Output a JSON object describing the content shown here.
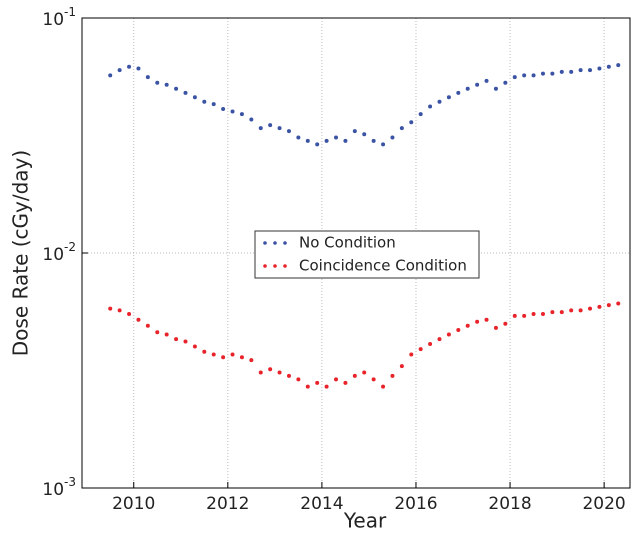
{
  "chart_data": {
    "type": "scatter",
    "x_label": "Year",
    "y_label": "Dose Rate (cGy/day)",
    "log_y": true,
    "grid": true,
    "legend_position": "center",
    "xlim": [
      2008.9,
      2020.55
    ],
    "xticks": [
      2010,
      2012,
      2014,
      2016,
      2018,
      2020
    ],
    "ylim": [
      0.001,
      0.1
    ],
    "yticks": [
      {
        "value": 0.001,
        "label": "10^-3"
      },
      {
        "value": 0.01,
        "label": "10^-2"
      },
      {
        "value": 0.1,
        "label": "10^-1"
      }
    ],
    "x": [
      2009.5,
      2009.7,
      2009.9,
      2010.1,
      2010.3,
      2010.5,
      2010.7,
      2010.9,
      2011.1,
      2011.3,
      2011.5,
      2011.7,
      2011.9,
      2012.1,
      2012.3,
      2012.5,
      2012.7,
      2012.9,
      2013.1,
      2013.3,
      2013.5,
      2013.7,
      2013.9,
      2014.1,
      2014.3,
      2014.5,
      2014.7,
      2014.9,
      2015.1,
      2015.3,
      2015.5,
      2015.7,
      2015.9,
      2016.1,
      2016.3,
      2016.5,
      2016.7,
      2016.9,
      2017.1,
      2017.3,
      2017.5,
      2017.7,
      2017.9,
      2018.1,
      2018.3,
      2018.5,
      2018.7,
      2018.9,
      2019.1,
      2019.3,
      2019.5,
      2019.7,
      2019.9,
      2020.1,
      2020.3
    ],
    "series": [
      {
        "name": "No Condition",
        "color": "#3a53a4",
        "values": [
          0.057,
          0.06,
          0.062,
          0.061,
          0.056,
          0.053,
          0.052,
          0.05,
          0.048,
          0.046,
          0.044,
          0.043,
          0.041,
          0.04,
          0.039,
          0.037,
          0.034,
          0.035,
          0.034,
          0.033,
          0.031,
          0.03,
          0.029,
          0.03,
          0.031,
          0.03,
          0.033,
          0.032,
          0.03,
          0.029,
          0.031,
          0.034,
          0.036,
          0.039,
          0.042,
          0.044,
          0.046,
          0.048,
          0.05,
          0.052,
          0.054,
          0.05,
          0.053,
          0.056,
          0.057,
          0.057,
          0.058,
          0.058,
          0.059,
          0.059,
          0.06,
          0.06,
          0.061,
          0.062,
          0.063
        ]
      },
      {
        "name": "Coincidence Condition",
        "color": "#e8232a",
        "values": [
          0.0058,
          0.0057,
          0.0055,
          0.0052,
          0.0049,
          0.0046,
          0.0045,
          0.0043,
          0.0042,
          0.004,
          0.0038,
          0.0037,
          0.0036,
          0.0037,
          0.0036,
          0.0035,
          0.0031,
          0.0032,
          0.0031,
          0.003,
          0.0029,
          0.0027,
          0.0028,
          0.0027,
          0.0029,
          0.0028,
          0.003,
          0.0031,
          0.0029,
          0.0027,
          0.003,
          0.0033,
          0.0037,
          0.0039,
          0.0041,
          0.0043,
          0.0045,
          0.0047,
          0.0049,
          0.0051,
          0.0052,
          0.0048,
          0.005,
          0.0054,
          0.0054,
          0.0055,
          0.0055,
          0.0056,
          0.0056,
          0.0057,
          0.0057,
          0.0058,
          0.0059,
          0.006,
          0.0061
        ]
      }
    ]
  }
}
